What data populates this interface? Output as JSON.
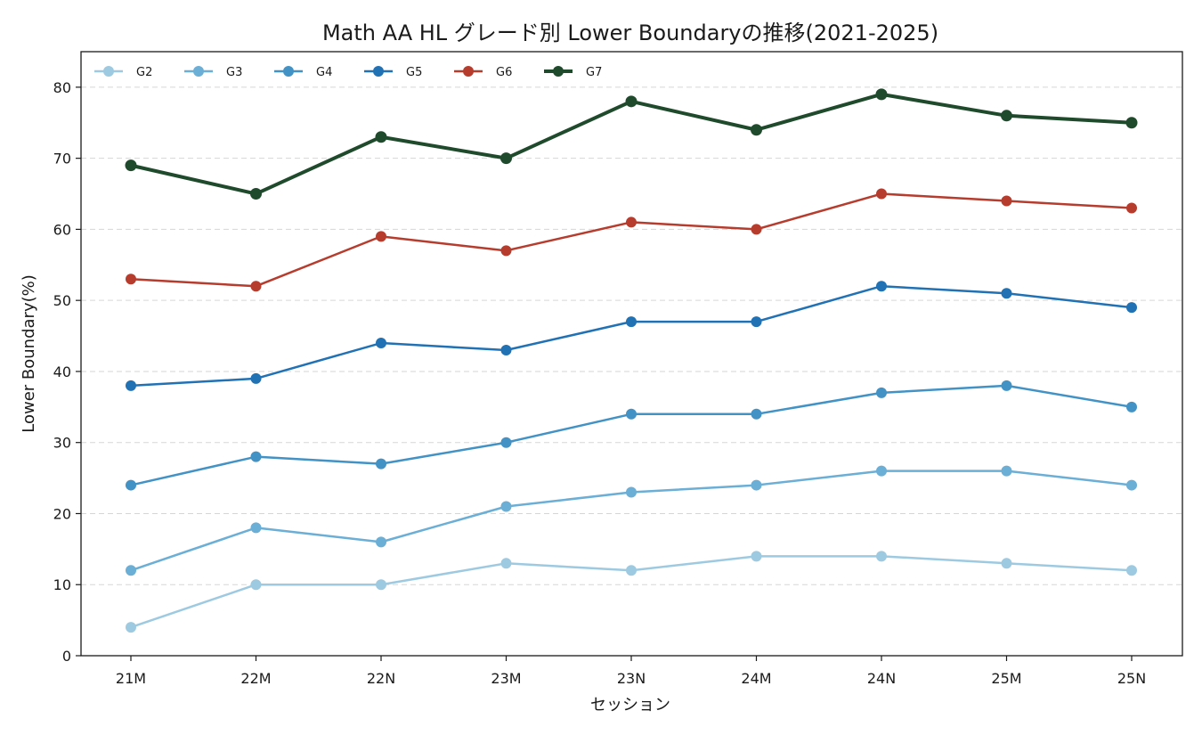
{
  "chart_data": {
    "type": "line",
    "title": "Math AA HL グレード別 Lower Boundaryの推移(2021-2025)",
    "xlabel": "セッション",
    "ylabel": "Lower Boundary(%)",
    "categories": [
      "21M",
      "22M",
      "22N",
      "23M",
      "23N",
      "24M",
      "24N",
      "25M",
      "25N"
    ],
    "ylim": [
      0,
      85
    ],
    "yticks": [
      0,
      10,
      20,
      30,
      40,
      50,
      60,
      70,
      80
    ],
    "grid": "horizontal-dashed",
    "legend": "top-left",
    "series": [
      {
        "name": "G2",
        "color": "#9ecae1",
        "values": [
          4,
          10,
          10,
          13,
          12,
          14,
          14,
          13,
          12
        ]
      },
      {
        "name": "G3",
        "color": "#6baed6",
        "values": [
          12,
          18,
          16,
          21,
          23,
          24,
          26,
          26,
          24
        ]
      },
      {
        "name": "G4",
        "color": "#4292c6",
        "values": [
          24,
          28,
          27,
          30,
          34,
          34,
          37,
          38,
          35
        ]
      },
      {
        "name": "G5",
        "color": "#2171b5",
        "values": [
          38,
          39,
          44,
          43,
          47,
          47,
          52,
          51,
          49
        ]
      },
      {
        "name": "G6",
        "color": "#b63c2e",
        "values": [
          53,
          52,
          59,
          57,
          61,
          60,
          65,
          64,
          63
        ]
      },
      {
        "name": "G7",
        "color": "#1f4a2c",
        "values": [
          69,
          65,
          73,
          70,
          78,
          74,
          79,
          76,
          75
        ],
        "emphasis": true
      }
    ]
  }
}
